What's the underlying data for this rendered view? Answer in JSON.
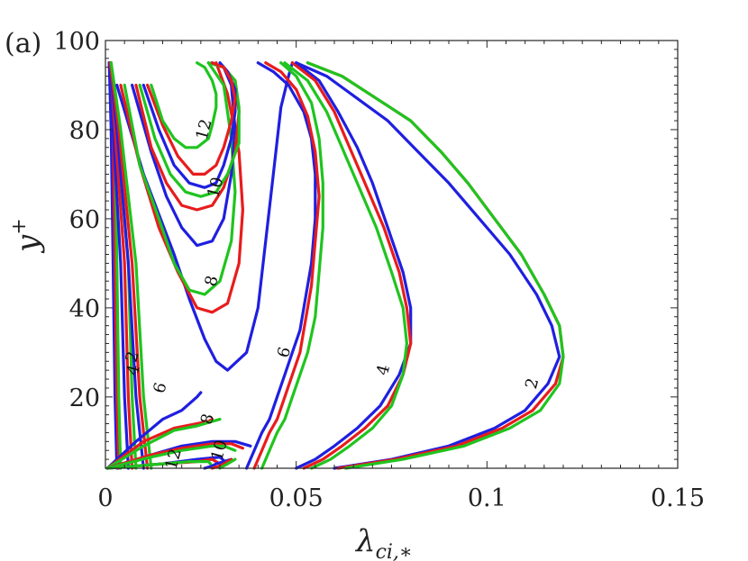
{
  "panel_label": "(a)",
  "chart_data": {
    "type": "line",
    "title": "",
    "xlabel": "λ_{ci,*}",
    "ylabel": "y^+",
    "xlim": [
      0,
      0.15
    ],
    "ylim": [
      4,
      100
    ],
    "xticks": [
      0,
      0.05,
      0.1,
      0.15
    ],
    "xtick_labels": [
      "0",
      "0.05",
      "0.1",
      "0.15"
    ],
    "yticks": [
      20,
      40,
      60,
      80,
      100
    ],
    "ytick_labels": [
      "20",
      "40",
      "60",
      "80",
      "100"
    ],
    "grid": false,
    "legend": "none",
    "colors": {
      "blue": "#1f1fe0",
      "red": "#e81c1c",
      "green": "#1fc41f"
    },
    "series": [
      {
        "color": "blue",
        "x": [
          0.003,
          0.0025,
          0.002,
          0.0015,
          0.001
        ],
        "y": [
          4,
          20,
          50,
          80,
          95
        ]
      },
      {
        "color": "red",
        "x": [
          0.0035,
          0.003,
          0.0025,
          0.002,
          0.0012
        ],
        "y": [
          4,
          20,
          50,
          80,
          95
        ]
      },
      {
        "color": "green",
        "x": [
          0.004,
          0.0035,
          0.003,
          0.0025,
          0.0015
        ],
        "y": [
          4,
          20,
          50,
          80,
          95
        ]
      },
      {
        "color": "blue",
        "x": [
          0.006,
          0.005,
          0.004,
          0.002,
          0.001
        ],
        "y": [
          4,
          20,
          50,
          80,
          95
        ]
      },
      {
        "color": "red",
        "x": [
          0.007,
          0.006,
          0.005,
          0.0025,
          0.0012
        ],
        "y": [
          4,
          20,
          50,
          80,
          95
        ]
      },
      {
        "color": "green",
        "x": [
          0.008,
          0.007,
          0.006,
          0.003,
          0.0015
        ],
        "y": [
          4,
          20,
          50,
          80,
          95
        ]
      },
      {
        "color": "blue",
        "x": [
          0.01,
          0.008,
          0.006,
          0.003,
          0.001
        ],
        "y": [
          4,
          20,
          50,
          80,
          95
        ]
      },
      {
        "color": "red",
        "x": [
          0.011,
          0.009,
          0.007,
          0.0035,
          0.0012
        ],
        "y": [
          4,
          20,
          50,
          80,
          95
        ]
      },
      {
        "color": "green",
        "x": [
          0.012,
          0.01,
          0.008,
          0.004,
          0.0015
        ],
        "y": [
          4,
          20,
          50,
          80,
          95
        ]
      },
      {
        "color": "blue",
        "x": [
          0.0005,
          0.008,
          0.015,
          0.02,
          0.024,
          0.025
        ],
        "y": [
          4,
          10,
          15,
          17,
          20,
          21
        ]
      },
      {
        "color": "red",
        "x": [
          0.0005,
          0.01,
          0.018,
          0.024,
          0.027,
          0.028
        ],
        "y": [
          4,
          10,
          13,
          14,
          14.5,
          15
        ]
      },
      {
        "color": "green",
        "x": [
          0.0005,
          0.01,
          0.018,
          0.024,
          0.028,
          0.03
        ],
        "y": [
          4,
          9,
          12.5,
          13.5,
          14.5,
          15
        ]
      },
      {
        "color": "blue",
        "x": [
          0.0005,
          0.012,
          0.02,
          0.028,
          0.034,
          0.038
        ],
        "y": [
          4,
          7,
          9,
          10,
          10,
          9
        ]
      },
      {
        "color": "red",
        "x": [
          0.0005,
          0.012,
          0.02,
          0.028,
          0.033,
          0.036
        ],
        "y": [
          4,
          7,
          8.5,
          9.5,
          9.5,
          8.5
        ]
      },
      {
        "color": "green",
        "x": [
          0.0005,
          0.012,
          0.02,
          0.028,
          0.031,
          0.034
        ],
        "y": [
          4,
          6.5,
          8,
          9,
          9,
          8
        ]
      },
      {
        "color": "blue",
        "x": [
          0.0005,
          0.015,
          0.024,
          0.03,
          0.032
        ],
        "y": [
          4,
          5,
          6,
          6.5,
          5
        ]
      },
      {
        "color": "red",
        "x": [
          0.0005,
          0.015,
          0.024,
          0.028,
          0.03
        ],
        "y": [
          4,
          5,
          5.5,
          6,
          5
        ]
      },
      {
        "color": "green",
        "x": [
          0.0005,
          0.015,
          0.022,
          0.027,
          0.028
        ],
        "y": [
          4,
          5,
          5.5,
          5.5,
          4.5
        ]
      },
      {
        "color": "blue",
        "x": [
          0.026,
          0.028,
          0.029,
          0.031,
          0.033
        ],
        "y": [
          4,
          4.5,
          5,
          5.5,
          6
        ]
      },
      {
        "color": "red",
        "x": [
          0.028,
          0.03,
          0.031,
          0.032,
          0.033
        ],
        "y": [
          4,
          4.5,
          5,
          5.5,
          6
        ]
      },
      {
        "color": "green",
        "x": [
          0.03,
          0.031,
          0.032,
          0.033,
          0.034
        ],
        "y": [
          4,
          4.5,
          5,
          5.5,
          6
        ]
      },
      {
        "color": "blue",
        "x": [
          0.003,
          0.01,
          0.018,
          0.022,
          0.026,
          0.029,
          0.032,
          0.037,
          0.04,
          0.042,
          0.044,
          0.046,
          0.048,
          0.049
        ],
        "y": [
          90,
          70,
          52,
          42,
          33,
          28,
          26,
          30,
          40,
          55,
          70,
          85,
          92,
          95
        ]
      },
      {
        "color": "red",
        "x": [
          0.004,
          0.009,
          0.014,
          0.019,
          0.024,
          0.028,
          0.032,
          0.035,
          0.036,
          0.035,
          0.032,
          0.029
        ],
        "y": [
          90,
          72,
          58,
          48,
          40,
          39,
          41,
          50,
          62,
          75,
          88,
          95
        ]
      },
      {
        "color": "green",
        "x": [
          0.005,
          0.009,
          0.014,
          0.018,
          0.022,
          0.026,
          0.03,
          0.033,
          0.034,
          0.033,
          0.031,
          0.027
        ],
        "y": [
          90,
          72,
          60,
          50,
          44,
          43,
          46,
          55,
          66,
          78,
          90,
          95
        ]
      },
      {
        "color": "blue",
        "x": [
          0.007,
          0.012,
          0.016,
          0.02,
          0.024,
          0.028,
          0.031,
          0.033,
          0.034,
          0.033,
          0.031,
          0.028
        ],
        "y": [
          90,
          75,
          65,
          58,
          54,
          55,
          60,
          70,
          80,
          90,
          94,
          95
        ]
      },
      {
        "color": "red",
        "x": [
          0.008,
          0.012,
          0.016,
          0.02,
          0.024,
          0.028,
          0.031,
          0.034,
          0.035,
          0.034,
          0.031,
          0.028
        ],
        "y": [
          90,
          76,
          68,
          63,
          62,
          63,
          67,
          75,
          84,
          91,
          94,
          95
        ]
      },
      {
        "color": "green",
        "x": [
          0.009,
          0.013,
          0.017,
          0.021,
          0.025,
          0.029,
          0.032,
          0.035,
          0.035,
          0.034,
          0.031,
          0.027
        ],
        "y": [
          90,
          78,
          70,
          66,
          65,
          66,
          70,
          77,
          85,
          91,
          94,
          95
        ]
      },
      {
        "color": "blue",
        "x": [
          0.01,
          0.014,
          0.018,
          0.022,
          0.026,
          0.029,
          0.031,
          0.033,
          0.034,
          0.034,
          0.032,
          0.03
        ],
        "y": [
          90,
          80,
          72,
          68,
          67,
          68,
          72,
          78,
          84,
          89,
          93,
          95
        ]
      },
      {
        "color": "red",
        "x": [
          0.011,
          0.015,
          0.019,
          0.023,
          0.026,
          0.029,
          0.031,
          0.033,
          0.034,
          0.033,
          0.031,
          0.028
        ],
        "y": [
          90,
          81,
          74,
          70,
          70,
          72,
          76,
          82,
          87,
          91,
          94,
          95
        ]
      },
      {
        "color": "green",
        "x": [
          0.012,
          0.015,
          0.018,
          0.021,
          0.024,
          0.027,
          0.028,
          0.029,
          0.029,
          0.028,
          0.026,
          0.024
        ],
        "y": [
          90,
          82,
          78,
          76,
          76,
          78,
          81,
          85,
          88,
          91,
          94,
          95
        ]
      },
      {
        "color": "blue",
        "x": [
          0.037,
          0.039,
          0.041,
          0.043,
          0.045,
          0.047,
          0.049,
          0.051,
          0.052,
          0.054,
          0.055,
          0.055,
          0.054,
          0.052,
          0.048,
          0.044,
          0.04
        ],
        "y": [
          4,
          8,
          12,
          15,
          20,
          25,
          30,
          35,
          40,
          50,
          60,
          70,
          78,
          84,
          90,
          93,
          95
        ]
      },
      {
        "color": "red",
        "x": [
          0.039,
          0.041,
          0.043,
          0.045,
          0.047,
          0.049,
          0.051,
          0.052,
          0.054,
          0.055,
          0.056,
          0.055,
          0.053,
          0.05,
          0.046,
          0.042
        ],
        "y": [
          4,
          8,
          12,
          15,
          20,
          25,
          30,
          35,
          45,
          55,
          65,
          75,
          83,
          89,
          93,
          95
        ]
      },
      {
        "color": "green",
        "x": [
          0.041,
          0.043,
          0.045,
          0.047,
          0.049,
          0.051,
          0.053,
          0.055,
          0.056,
          0.057,
          0.057,
          0.056,
          0.054,
          0.05,
          0.046
        ],
        "y": [
          4,
          8,
          12,
          15,
          20,
          25,
          30,
          38,
          48,
          58,
          68,
          78,
          86,
          92,
          95
        ]
      },
      {
        "color": "blue",
        "x": [
          0.05,
          0.055,
          0.06,
          0.066,
          0.072,
          0.077,
          0.08,
          0.08,
          0.078,
          0.074,
          0.07,
          0.066,
          0.061,
          0.056,
          0.05
        ],
        "y": [
          4,
          6,
          9,
          13,
          18,
          25,
          32,
          40,
          48,
          58,
          68,
          76,
          84,
          91,
          95
        ]
      },
      {
        "color": "red",
        "x": [
          0.052,
          0.057,
          0.062,
          0.068,
          0.074,
          0.078,
          0.08,
          0.079,
          0.077,
          0.073,
          0.068,
          0.064,
          0.06,
          0.055,
          0.049
        ],
        "y": [
          4,
          6,
          9,
          13,
          18,
          25,
          32,
          40,
          48,
          58,
          68,
          76,
          84,
          91,
          95
        ]
      },
      {
        "color": "green",
        "x": [
          0.054,
          0.059,
          0.064,
          0.07,
          0.075,
          0.078,
          0.079,
          0.078,
          0.075,
          0.071,
          0.066,
          0.062,
          0.058,
          0.053,
          0.047
        ],
        "y": [
          4,
          6,
          9,
          13,
          18,
          25,
          32,
          40,
          48,
          58,
          68,
          76,
          84,
          91,
          95
        ]
      },
      {
        "color": "blue",
        "x": [
          0.06,
          0.075,
          0.09,
          0.102,
          0.11,
          0.116,
          0.119,
          0.117,
          0.113,
          0.106,
          0.098,
          0.09,
          0.082,
          0.074,
          0.066,
          0.058,
          0.05
        ],
        "y": [
          4,
          6,
          9,
          13,
          17,
          23,
          29,
          36,
          43,
          52,
          60,
          68,
          75,
          82,
          87,
          92,
          95
        ]
      },
      {
        "color": "red",
        "x": [
          0.061,
          0.076,
          0.092,
          0.104,
          0.112,
          0.118,
          0.12,
          0.119,
          0.115,
          0.109,
          0.102,
          0.095,
          0.088,
          0.08,
          0.071,
          0.062,
          0.053
        ],
        "y": [
          4,
          6,
          9,
          13,
          17,
          23,
          29,
          36,
          43,
          52,
          60,
          68,
          75,
          82,
          87,
          92,
          95
        ]
      },
      {
        "color": "green",
        "x": [
          0.063,
          0.078,
          0.094,
          0.106,
          0.114,
          0.119,
          0.12,
          0.119,
          0.115,
          0.109,
          0.102,
          0.095,
          0.088,
          0.08,
          0.071,
          0.062,
          0.053
        ],
        "y": [
          4,
          6,
          9,
          13,
          17,
          23,
          29,
          36,
          43,
          52,
          60,
          68,
          75,
          82,
          87,
          92,
          95
        ]
      }
    ],
    "annotations": [
      {
        "text": "12",
        "x": 0.026,
        "y": 80
      },
      {
        "text": "10",
        "x": 0.029,
        "y": 67
      },
      {
        "text": "8",
        "x": 0.028,
        "y": 46
      },
      {
        "text": "6",
        "x": 0.047,
        "y": 30
      },
      {
        "text": "4",
        "x": 0.073,
        "y": 26
      },
      {
        "text": "2",
        "x": 0.112,
        "y": 23
      },
      {
        "text": "2",
        "x": 0.0072,
        "y": 29
      },
      {
        "text": "4",
        "x": 0.0075,
        "y": 26
      },
      {
        "text": "6",
        "x": 0.0145,
        "y": 22
      },
      {
        "text": "8",
        "x": 0.0269,
        "y": 15
      },
      {
        "text": "10",
        "x": 0.03,
        "y": 8
      },
      {
        "text": "12",
        "x": 0.018,
        "y": 6
      }
    ]
  }
}
